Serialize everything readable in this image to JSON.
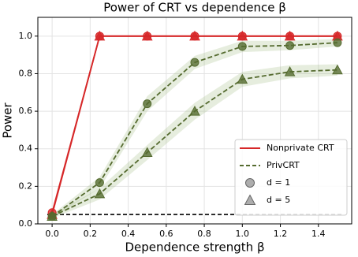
{
  "chart_data": {
    "type": "line",
    "title": "Power of CRT vs dependence β",
    "x_label": "Dependence strength β",
    "y_label": "Power",
    "x": [
      0,
      0.25,
      0.5,
      0.75,
      1.0,
      1.25,
      1.5
    ],
    "series": [
      {
        "color": "#d62728",
        "marker": "circle",
        "dash": false,
        "values": [
          0.06,
          1.0,
          1.0,
          1.0,
          1.0,
          1.0,
          1.0
        ]
      },
      {
        "color": "#d62728",
        "marker": "triangle",
        "dash": false,
        "values": [
          0.05,
          1.0,
          1.0,
          1.0,
          1.0,
          1.0,
          1.0
        ]
      },
      {
        "color": "#556b2f",
        "marker": "circle",
        "dash": true,
        "values": [
          0.04,
          0.22,
          0.64,
          0.86,
          0.945,
          0.95,
          0.965
        ],
        "error": [
          0.01,
          0.03,
          0.04,
          0.035,
          0.03,
          0.025,
          0.02
        ]
      },
      {
        "color": "#556b2f",
        "marker": "triangle",
        "dash": true,
        "values": [
          0.04,
          0.16,
          0.38,
          0.6,
          0.77,
          0.81,
          0.82
        ],
        "error": [
          0.01,
          0.03,
          0.04,
          0.045,
          0.04,
          0.035,
          0.03
        ]
      }
    ],
    "hline": 0.05,
    "legend": [
      {
        "label": "Nonprivate CRT",
        "color": "#d62728",
        "style": "line"
      },
      {
        "label": "PrivCRT",
        "color": "#556b2f",
        "style": "dash"
      },
      {
        "label": "d = 1",
        "color": "#999999",
        "style": "circle"
      },
      {
        "label": "d = 5",
        "color": "#999999",
        "style": "triangle"
      }
    ],
    "xlim": [
      -0.075,
      1.575
    ],
    "ylim": [
      0,
      1.1
    ],
    "xticks": [
      {
        "value": 0,
        "label": "0.0"
      },
      {
        "value": 0.2,
        "label": "0.2"
      },
      {
        "value": 0.4,
        "label": "0.4"
      },
      {
        "value": 0.6,
        "label": "0.6"
      },
      {
        "value": 0.8,
        "label": "0.8"
      },
      {
        "value": 1.0,
        "label": "1.0"
      },
      {
        "value": 1.2,
        "label": "1.2"
      },
      {
        "value": 1.4,
        "label": "1.4"
      }
    ],
    "yticks": [
      {
        "value": 0,
        "label": "0.0"
      },
      {
        "value": 0.2,
        "label": "0.2"
      },
      {
        "value": 0.4,
        "label": "0.4"
      },
      {
        "value": 0.6,
        "label": "0.6"
      },
      {
        "value": 0.8,
        "label": "0.8"
      },
      {
        "value": 1.0,
        "label": "1.0"
      }
    ],
    "grid": true
  }
}
